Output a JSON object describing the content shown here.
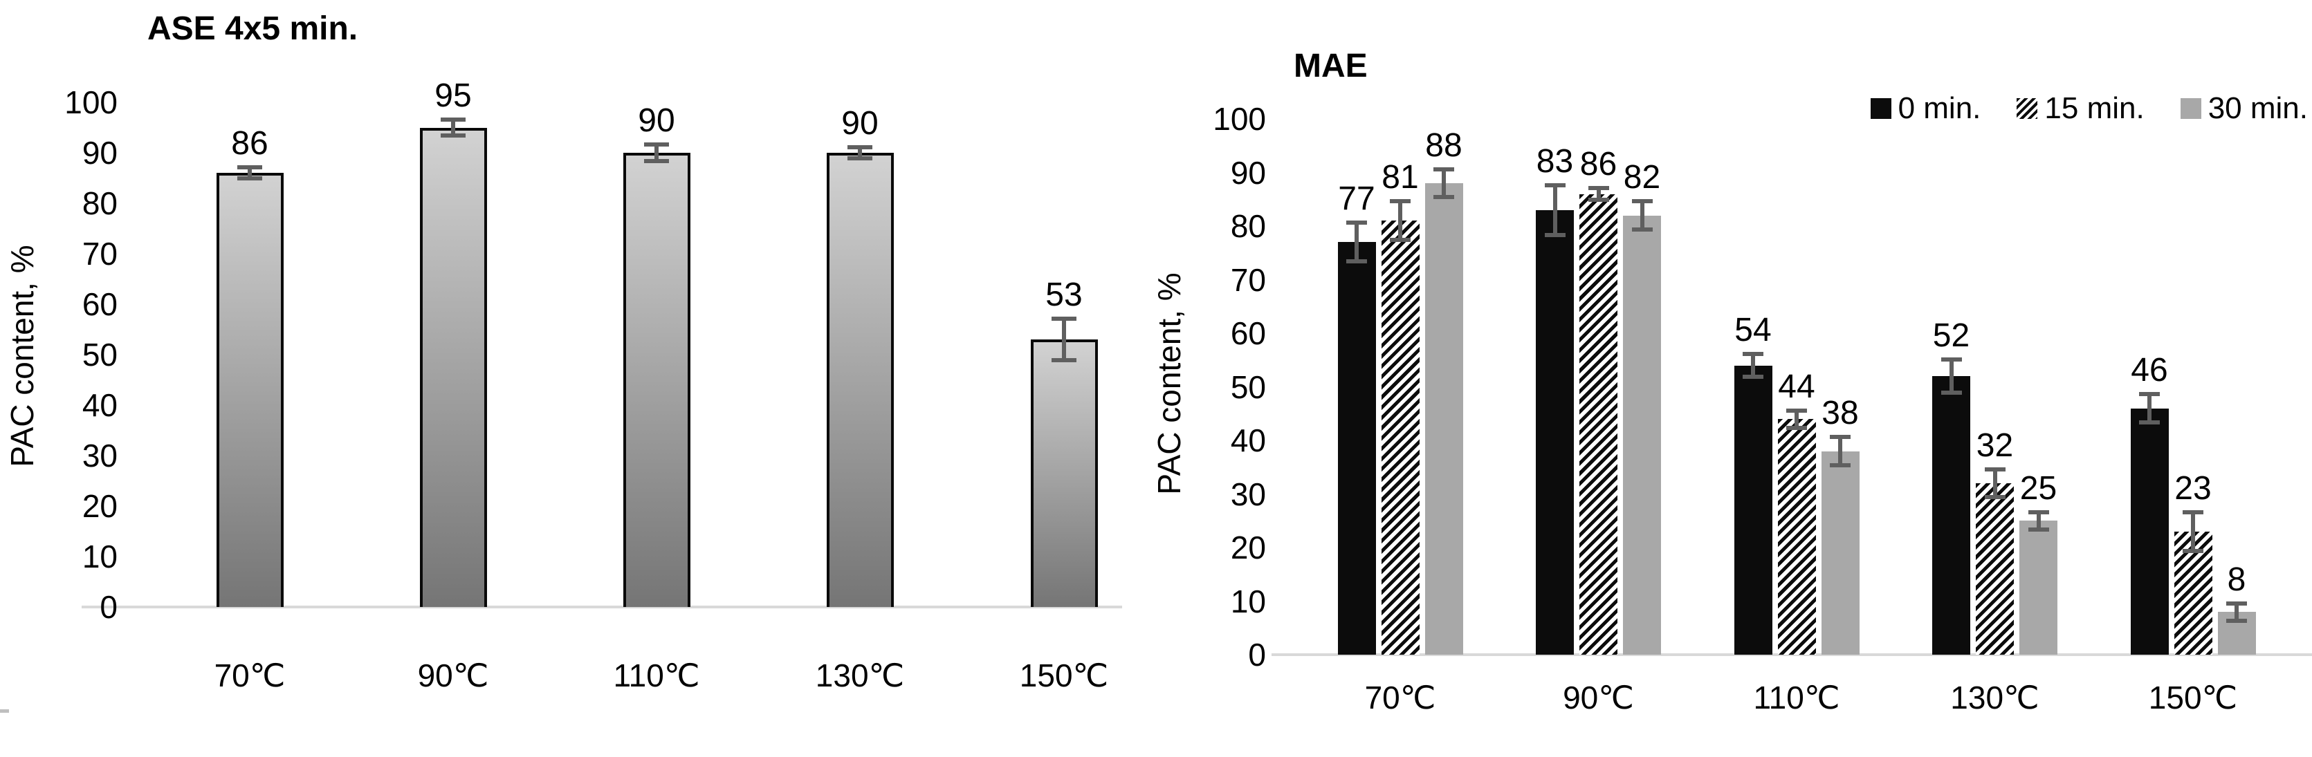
{
  "figure": {
    "description": "Two-panel bar figure of PAC content versus extraction temperature"
  },
  "chart_data": [
    {
      "id": "ase",
      "type": "bar",
      "title": "ASE 4x5 min.",
      "ylabel": "PAC content, %",
      "xlabel": "",
      "categories": [
        "70℃",
        "90℃",
        "110℃",
        "130℃",
        "150℃"
      ],
      "values": [
        86,
        95,
        90,
        90,
        53
      ],
      "errors": [
        1.5,
        2,
        2,
        1.5,
        4.5
      ],
      "ylim": [
        0,
        100
      ],
      "ytick_step": 10,
      "grid": false,
      "legend": null,
      "bar_style": "gradient-gray"
    },
    {
      "id": "mae",
      "type": "bar",
      "title": "MAE",
      "ylabel": "PAC content, %",
      "xlabel": "",
      "categories": [
        "70℃",
        "90℃",
        "110℃",
        "130℃",
        "150℃"
      ],
      "series": [
        {
          "name": "0 min.",
          "style": "solid-black",
          "values": [
            77,
            83,
            54,
            52,
            46
          ],
          "errors": [
            4,
            5,
            2.5,
            3.5,
            3
          ]
        },
        {
          "name": "15 min.",
          "style": "diagonal-hatch",
          "values": [
            81,
            86,
            44,
            32,
            23
          ],
          "errors": [
            4,
            1.5,
            2,
            3,
            4
          ]
        },
        {
          "name": "30 min.",
          "style": "solid-gray",
          "values": [
            88,
            82,
            38,
            25,
            8
          ],
          "errors": [
            3,
            3,
            3,
            2,
            2
          ]
        }
      ],
      "ylim": [
        0,
        100
      ],
      "ytick_step": 10,
      "grid": false,
      "legend_position": "top-right"
    }
  ],
  "colors": {
    "grad_top": "#d2d2d2",
    "grad_bottom": "#757575",
    "bar_border": "#0a0a0a",
    "series_black": "#0c0c0c",
    "series_gray": "#a8a8a8",
    "error_bar": "#5f5f5f",
    "axis_line": "#d9d9d9",
    "text": "#000000"
  }
}
